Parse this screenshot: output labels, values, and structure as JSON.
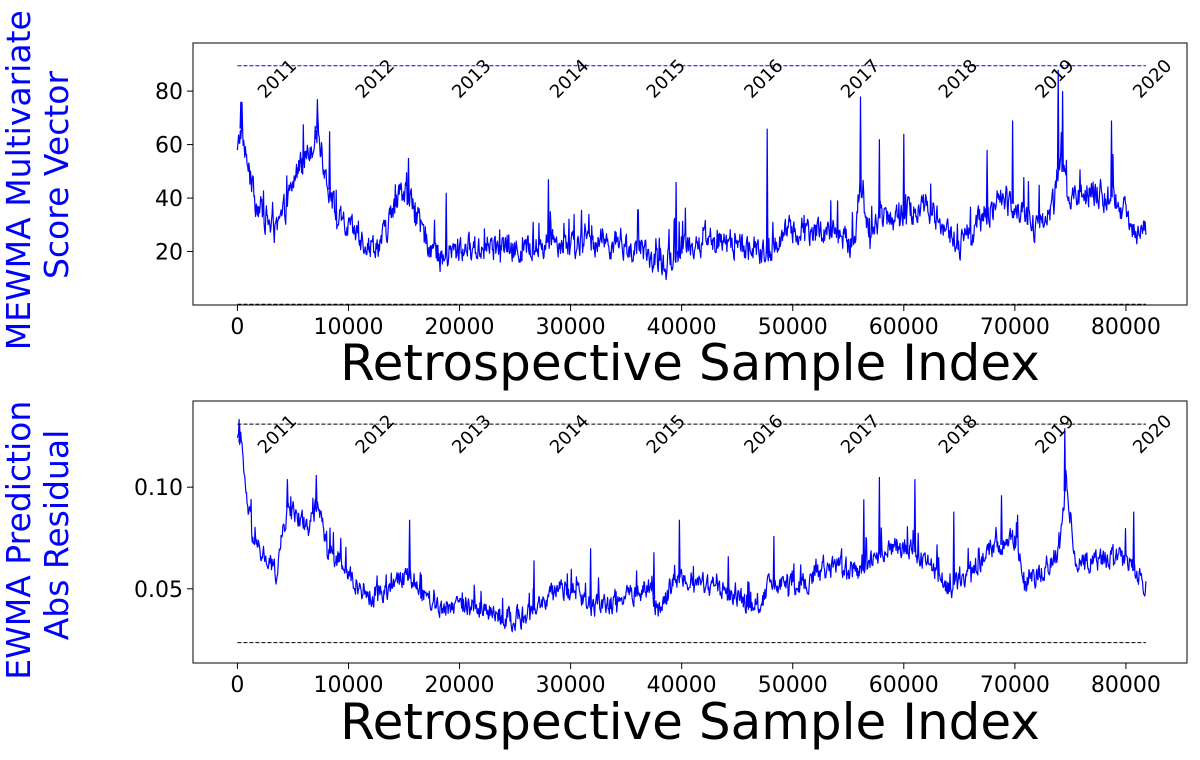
{
  "chart_data": [
    {
      "type": "line",
      "ylabel_lines": [
        "MEWMA Multivariate",
        "Score Vector"
      ],
      "xlabel": "Retrospective Sample Index",
      "xlim": [
        -4000,
        85500
      ],
      "ylim": [
        0,
        98
      ],
      "xticks": [
        0,
        10000,
        20000,
        30000,
        40000,
        50000,
        60000,
        70000,
        80000
      ],
      "xtick_labels": [
        "0",
        "10000",
        "20000",
        "30000",
        "40000",
        "50000",
        "60000",
        "70000",
        "80000"
      ],
      "yticks": [
        20,
        40,
        60,
        80
      ],
      "ytick_labels": [
        "20",
        "40",
        "60",
        "80"
      ],
      "reference_lines": [
        {
          "y": 89.5,
          "color": "#0000ff",
          "style": "dashed"
        },
        {
          "y": 0.3,
          "color": "#000000",
          "style": "dashed"
        }
      ],
      "year_annotations": [
        {
          "label": "2011",
          "x": 2500,
          "y": 80
        },
        {
          "label": "2012",
          "x": 11300,
          "y": 80
        },
        {
          "label": "2013",
          "x": 20000,
          "y": 80
        },
        {
          "label": "2014",
          "x": 28800,
          "y": 80
        },
        {
          "label": "2015",
          "x": 37500,
          "y": 80
        },
        {
          "label": "2016",
          "x": 46300,
          "y": 80
        },
        {
          "label": "2017",
          "x": 55000,
          "y": 80
        },
        {
          "label": "2018",
          "x": 63800,
          "y": 80
        },
        {
          "label": "2019",
          "x": 72500,
          "y": 80
        },
        {
          "label": "2020",
          "x": 81300,
          "y": 80
        }
      ],
      "series": [
        {
          "color": "#0000ff",
          "x_end": 81800,
          "noise": 5,
          "x": [
            0,
            300,
            800,
            1500,
            2500,
            3500,
            4500,
            5500,
            6500,
            7200,
            8000,
            9000,
            10000,
            11000,
            12000,
            13000,
            14000,
            15000,
            15500,
            16500,
            17500,
            18500,
            19500,
            21000,
            23000,
            25000,
            27000,
            28500,
            30000,
            32000,
            34000,
            36000,
            37500,
            38500,
            40000,
            42000,
            44000,
            46000,
            47500,
            48500,
            50000,
            52000,
            54000,
            55500,
            56000,
            57000,
            58000,
            60000,
            62000,
            63500,
            65000,
            67000,
            69000,
            70500,
            72000,
            73500,
            74000,
            75000,
            77000,
            79000,
            80500,
            81800
          ],
          "y": [
            56,
            66,
            55,
            40,
            33,
            27,
            38,
            52,
            58,
            66,
            48,
            32,
            28,
            26,
            22,
            24,
            34,
            44,
            40,
            28,
            22,
            17,
            20,
            21,
            22,
            20,
            21,
            25,
            22,
            24,
            23,
            20,
            16,
            14,
            22,
            24,
            23,
            22,
            18,
            24,
            28,
            28,
            26,
            22,
            44,
            26,
            34,
            33,
            38,
            30,
            22,
            32,
            40,
            36,
            28,
            38,
            54,
            40,
            42,
            40,
            30,
            28
          ],
          "spikes": [
            {
              "x": 300,
              "y": 76
            },
            {
              "x": 7200,
              "y": 77
            },
            {
              "x": 8300,
              "y": 65
            },
            {
              "x": 15400,
              "y": 55
            },
            {
              "x": 18800,
              "y": 42
            },
            {
              "x": 28000,
              "y": 47
            },
            {
              "x": 39500,
              "y": 46
            },
            {
              "x": 47700,
              "y": 66
            },
            {
              "x": 56100,
              "y": 78
            },
            {
              "x": 57800,
              "y": 62
            },
            {
              "x": 60000,
              "y": 64
            },
            {
              "x": 67500,
              "y": 58
            },
            {
              "x": 69800,
              "y": 69
            },
            {
              "x": 73900,
              "y": 88
            },
            {
              "x": 74300,
              "y": 80
            },
            {
              "x": 78700,
              "y": 69
            }
          ]
        }
      ]
    },
    {
      "type": "line",
      "ylabel_lines": [
        "EWMA Prediction",
        "Abs Residual"
      ],
      "xlabel": "Retrospective Sample Index",
      "xlim": [
        -4000,
        85500
      ],
      "ylim": [
        0.0135,
        0.1424
      ],
      "xticks": [
        0,
        10000,
        20000,
        30000,
        40000,
        50000,
        60000,
        70000,
        80000
      ],
      "xtick_labels": [
        "0",
        "10000",
        "20000",
        "30000",
        "40000",
        "50000",
        "60000",
        "70000",
        "80000"
      ],
      "yticks": [
        0.05,
        0.1
      ],
      "ytick_labels": [
        "0.05",
        "0.10"
      ],
      "reference_lines": [
        {
          "y": 0.131,
          "color": "#000000",
          "style": "dashed"
        },
        {
          "y": 0.0235,
          "color": "#000000",
          "style": "dashed"
        }
      ],
      "year_annotations": [
        {
          "label": "2011",
          "x": 2500,
          "y": 0.12
        },
        {
          "label": "2012",
          "x": 11300,
          "y": 0.12
        },
        {
          "label": "2013",
          "x": 20000,
          "y": 0.12
        },
        {
          "label": "2014",
          "x": 28800,
          "y": 0.12
        },
        {
          "label": "2015",
          "x": 37500,
          "y": 0.12
        },
        {
          "label": "2016",
          "x": 46300,
          "y": 0.12
        },
        {
          "label": "2017",
          "x": 55000,
          "y": 0.12
        },
        {
          "label": "2018",
          "x": 63800,
          "y": 0.12
        },
        {
          "label": "2019",
          "x": 72500,
          "y": 0.12
        },
        {
          "label": "2020",
          "x": 81300,
          "y": 0.12
        }
      ],
      "series": [
        {
          "color": "#0000ff",
          "x_end": 81800,
          "noise": 0.005,
          "x": [
            0,
            300,
            800,
            1500,
            2500,
            3500,
            4500,
            5500,
            6500,
            7200,
            8000,
            9000,
            10000,
            12000,
            14000,
            15500,
            17000,
            18500,
            20000,
            22000,
            24000,
            26000,
            28000,
            30000,
            32000,
            34000,
            36000,
            37000,
            38000,
            39500,
            41000,
            43000,
            45000,
            46500,
            48000,
            50000,
            52000,
            54000,
            56000,
            58000,
            60000,
            62000,
            64000,
            66000,
            68000,
            70000,
            71000,
            72500,
            74000,
            74600,
            75500,
            77000,
            79000,
            80500,
            81800
          ],
          "y": [
            0.12,
            0.123,
            0.095,
            0.072,
            0.065,
            0.058,
            0.09,
            0.085,
            0.08,
            0.093,
            0.072,
            0.065,
            0.056,
            0.046,
            0.052,
            0.058,
            0.046,
            0.04,
            0.044,
            0.04,
            0.036,
            0.036,
            0.046,
            0.05,
            0.04,
            0.044,
            0.048,
            0.052,
            0.038,
            0.056,
            0.054,
            0.05,
            0.046,
            0.04,
            0.052,
            0.05,
            0.056,
            0.062,
            0.058,
            0.068,
            0.072,
            0.064,
            0.05,
            0.058,
            0.07,
            0.074,
            0.052,
            0.06,
            0.068,
            0.104,
            0.064,
            0.063,
            0.066,
            0.062,
            0.052
          ],
          "spikes": [
            {
              "x": 200,
              "y": 0.131
            },
            {
              "x": 4500,
              "y": 0.104
            },
            {
              "x": 7100,
              "y": 0.106
            },
            {
              "x": 15500,
              "y": 0.084
            },
            {
              "x": 26700,
              "y": 0.064
            },
            {
              "x": 31800,
              "y": 0.07
            },
            {
              "x": 37500,
              "y": 0.068
            },
            {
              "x": 39800,
              "y": 0.084
            },
            {
              "x": 44200,
              "y": 0.066
            },
            {
              "x": 48300,
              "y": 0.076
            },
            {
              "x": 56400,
              "y": 0.094
            },
            {
              "x": 57800,
              "y": 0.105
            },
            {
              "x": 61000,
              "y": 0.104
            },
            {
              "x": 64500,
              "y": 0.088
            },
            {
              "x": 68800,
              "y": 0.096
            },
            {
              "x": 74500,
              "y": 0.129
            },
            {
              "x": 80700,
              "y": 0.088
            }
          ]
        }
      ]
    }
  ]
}
